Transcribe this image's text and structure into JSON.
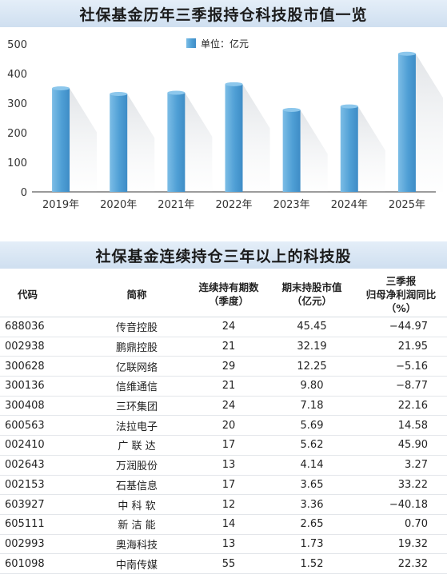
{
  "chart": {
    "title": "社保基金历年三季报持仓科技股市值一览",
    "legend_label": "单位：亿元",
    "bar_color": "#5aa6d8"
  },
  "chart_data": {
    "type": "bar",
    "title": "社保基金历年三季报持仓科技股市值一览",
    "categories": [
      "2019年",
      "2020年",
      "2021年",
      "2022年",
      "2023年",
      "2024年",
      "2025年"
    ],
    "series": [
      {
        "name": "单位：亿元",
        "values": [
          350,
          331,
          335,
          364,
          277,
          289,
          467
        ]
      }
    ],
    "xlabel": "",
    "ylabel": "",
    "ylim": [
      0,
      500
    ],
    "yticks": [
      0,
      100,
      200,
      300,
      400,
      500
    ],
    "grid": false,
    "legend": "top-center"
  },
  "table": {
    "title": "社保基金连续持仓三年以上的科技股",
    "headers": {
      "code": "代码",
      "name": "简称",
      "periods_line1": "连续持有期数",
      "periods_line2": "（季度）",
      "value_line1": "期末持股市值",
      "value_line2": "（亿元）",
      "growth_line1": "三季报",
      "growth_line2": "归母净利润同比",
      "growth_line3": "（%）"
    },
    "rows": [
      {
        "code": "688036",
        "name": "传音控股",
        "periods": "24",
        "value": "45.45",
        "growth": "−44.97"
      },
      {
        "code": "002938",
        "name": "鹏鼎控股",
        "periods": "21",
        "value": "32.19",
        "growth": "21.95"
      },
      {
        "code": "300628",
        "name": "亿联网络",
        "periods": "29",
        "value": "12.25",
        "growth": "−5.16"
      },
      {
        "code": "300136",
        "name": "信维通信",
        "periods": "21",
        "value": "9.80",
        "growth": "−8.77"
      },
      {
        "code": "300408",
        "name": "三环集团",
        "periods": "24",
        "value": "7.18",
        "growth": "22.16"
      },
      {
        "code": "600563",
        "name": "法拉电子",
        "periods": "20",
        "value": "5.69",
        "growth": "14.58"
      },
      {
        "code": "002410",
        "name": "广 联 达",
        "periods": "17",
        "value": "5.62",
        "growth": "45.90"
      },
      {
        "code": "002643",
        "name": "万润股份",
        "periods": "13",
        "value": "4.14",
        "growth": "3.27"
      },
      {
        "code": "002153",
        "name": "石基信息",
        "periods": "17",
        "value": "3.65",
        "growth": "33.22"
      },
      {
        "code": "603927",
        "name": "中 科 软",
        "periods": "12",
        "value": "3.36",
        "growth": "−40.18"
      },
      {
        "code": "605111",
        "name": "新 洁 能",
        "periods": "14",
        "value": "2.65",
        "growth": "0.70"
      },
      {
        "code": "002993",
        "name": "奥海科技",
        "periods": "13",
        "value": "1.73",
        "growth": "19.32"
      },
      {
        "code": "601098",
        "name": "中南传媒",
        "periods": "55",
        "value": "1.52",
        "growth": "22.32"
      }
    ]
  }
}
